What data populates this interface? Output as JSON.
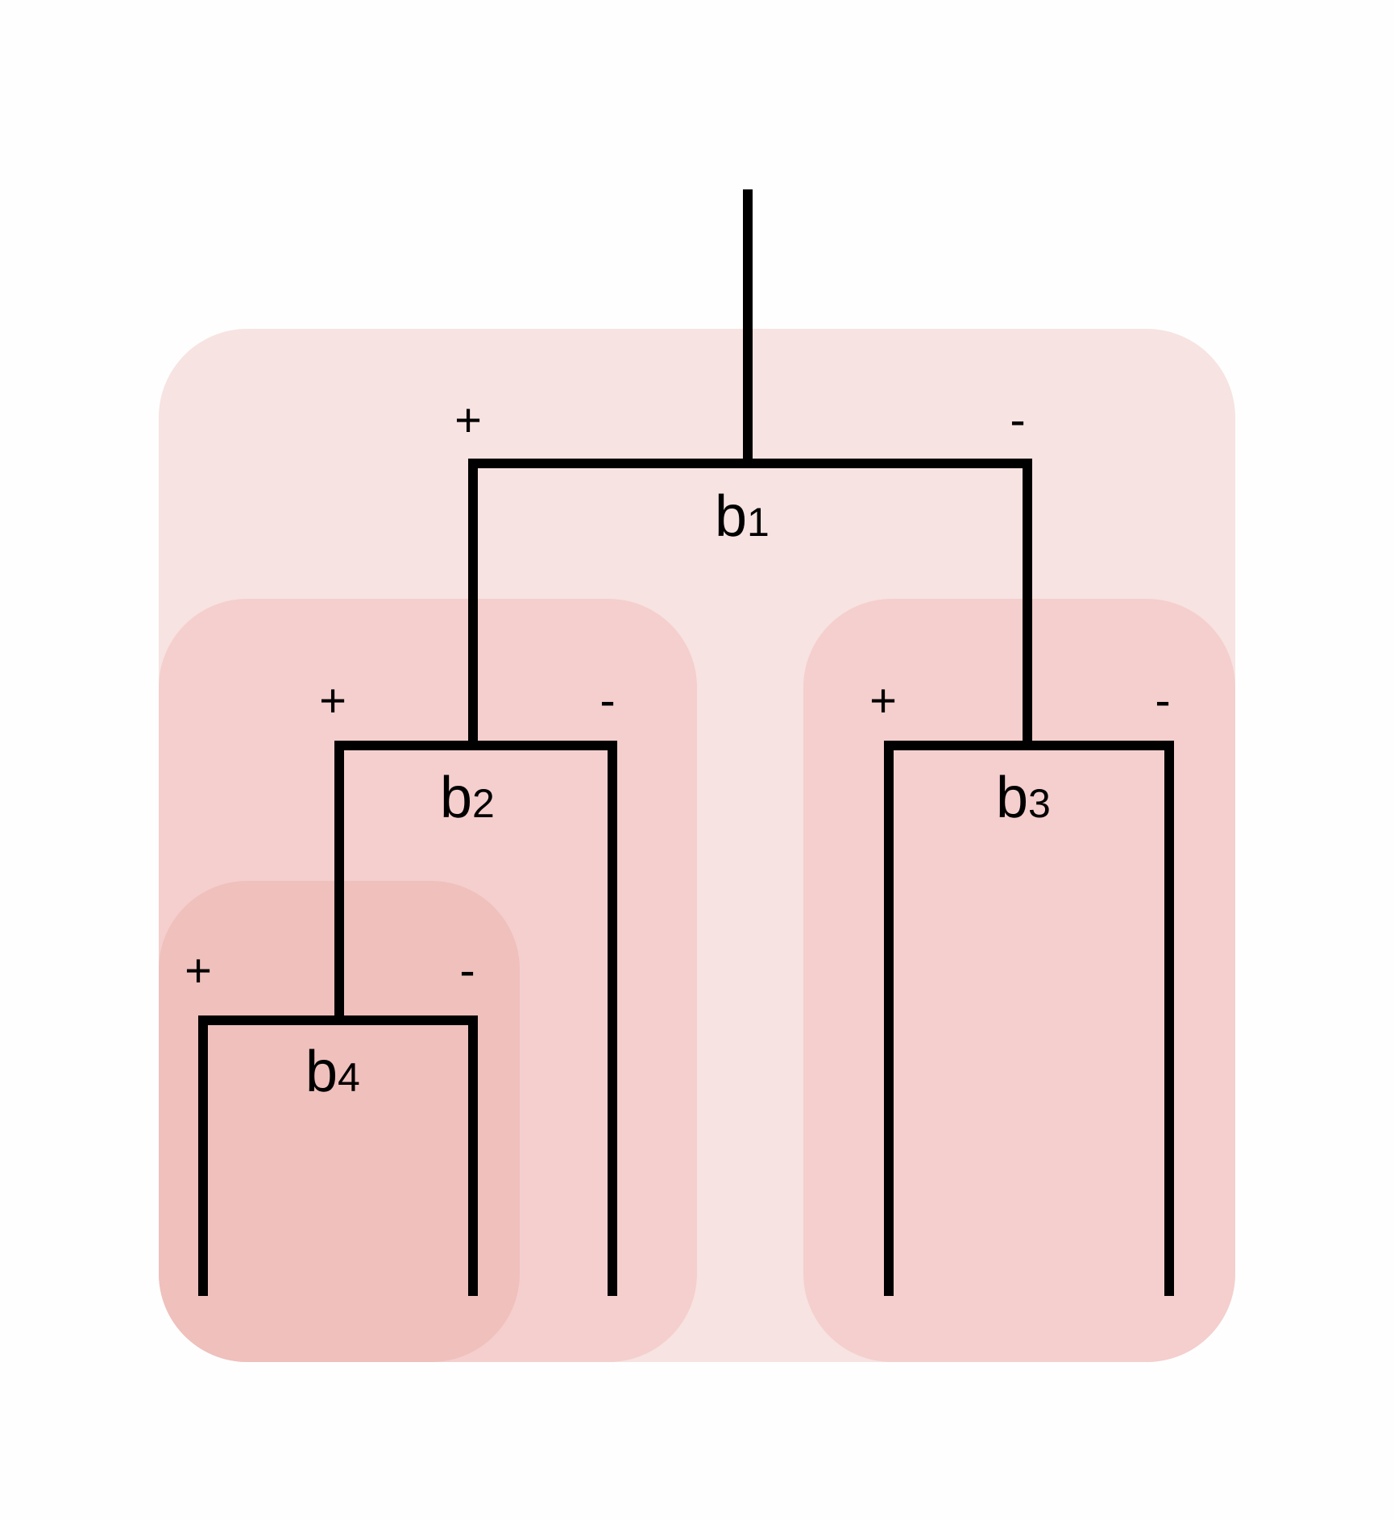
{
  "colors": {
    "background": "#fefefe",
    "outer_region": "#f7e3e1",
    "middle_region": "#f4cfcd",
    "inner_region": "#efc0bc",
    "line": "#000000"
  },
  "nodes": [
    {
      "id": "b1",
      "base": "b",
      "sub": "1",
      "plus": "+",
      "minus": "-"
    },
    {
      "id": "b2",
      "base": "b",
      "sub": "2",
      "plus": "+",
      "minus": "-"
    },
    {
      "id": "b3",
      "base": "b",
      "sub": "3",
      "plus": "+",
      "minus": "-"
    },
    {
      "id": "b4",
      "base": "b",
      "sub": "4",
      "plus": "+",
      "minus": "-"
    }
  ]
}
